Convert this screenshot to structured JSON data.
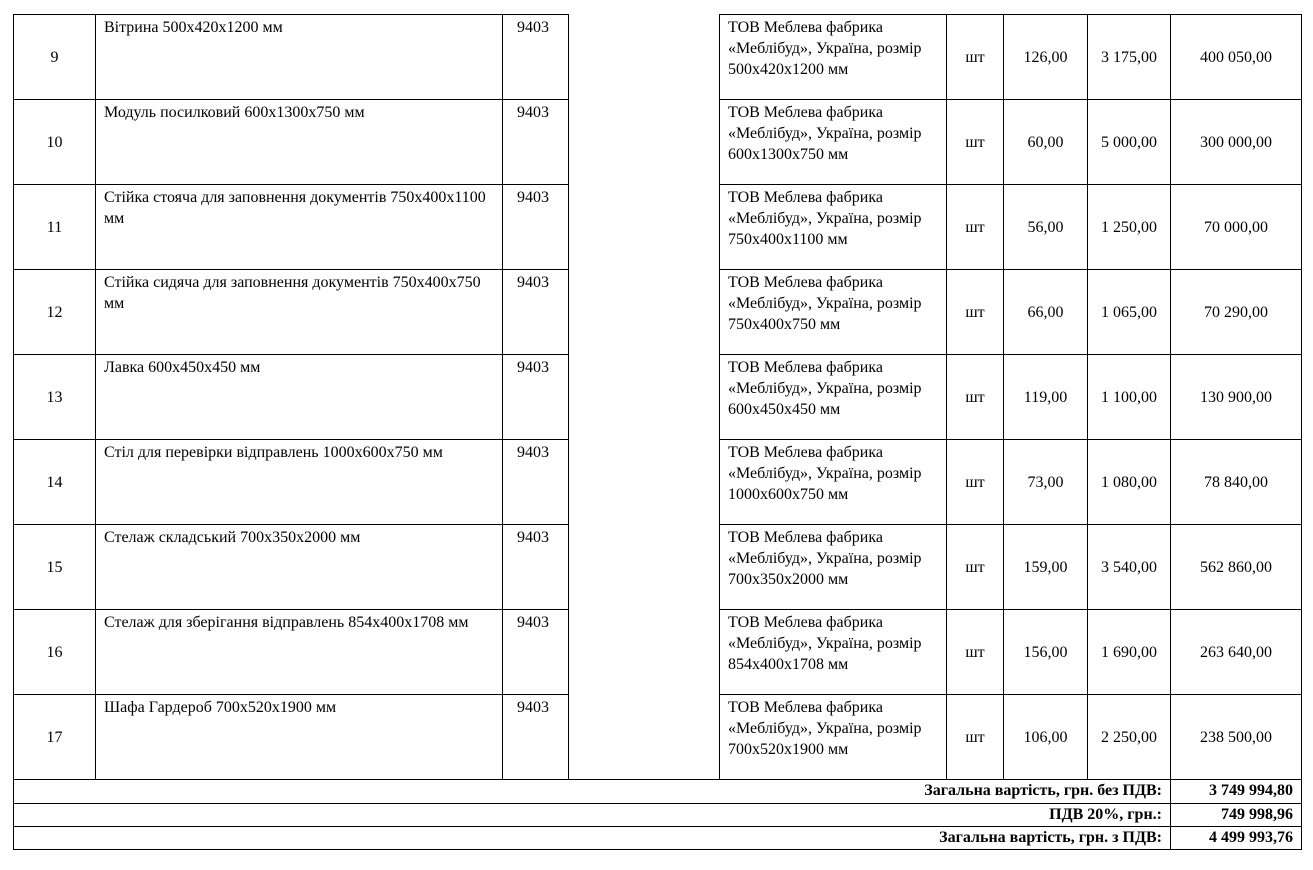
{
  "table": {
    "rows": [
      [
        "9",
        "Вітрина 500x420x1200 мм",
        "9403",
        "ТОВ Меблева фабрика «Меблібуд», Україна, розмір 500x420x1200 мм",
        "шт",
        "126,00",
        "3 175,00",
        "400 050,00"
      ],
      [
        "10",
        "Модуль посилковий 600x1300x750 мм",
        "9403",
        "ТОВ Меблева фабрика «Меблібуд», Україна, розмір 600x1300x750 мм",
        "шт",
        "60,00",
        "5 000,00",
        "300 000,00"
      ],
      [
        "11",
        "Стійка стояча для заповнення документів 750x400x1100 мм",
        "9403",
        "ТОВ Меблева фабрика «Меблібуд», Україна, розмір 750x400x1100 мм",
        "шт",
        "56,00",
        "1 250,00",
        "70 000,00"
      ],
      [
        "12",
        "Стійка сидяча для заповнення документів 750x400x750 мм",
        "9403",
        "ТОВ Меблева фабрика «Меблібуд», Україна, розмір 750x400x750 мм",
        "шт",
        "66,00",
        "1 065,00",
        "70 290,00"
      ],
      [
        "13",
        "Лавка 600x450x450 мм",
        "9403",
        "ТОВ Меблева фабрика «Меблібуд», Україна, розмір 600x450x450 мм",
        "шт",
        "119,00",
        "1 100,00",
        "130 900,00"
      ],
      [
        "14",
        "Стіл для перевірки відправлень 1000x600x750 мм",
        "9403",
        "ТОВ Меблева фабрика «Меблібуд», Україна, розмір 1000x600x750 мм",
        "шт",
        "73,00",
        "1 080,00",
        "78 840,00"
      ],
      [
        "15",
        "Стелаж складський 700x350x2000 мм",
        "9403",
        "ТОВ Меблева фабрика «Меблібуд», Україна, розмір 700x350x2000 мм",
        "шт",
        "159,00",
        "3 540,00",
        "562 860,00"
      ],
      [
        "16",
        "Стелаж для зберігання відправлень 854x400x1708 мм",
        "9403",
        "ТОВ Меблева фабрика «Меблібуд», Україна, розмір 854x400x1708 мм",
        "шт",
        "156,00",
        "1 690,00",
        "263 640,00"
      ],
      [
        "17",
        "Шафа Гардероб 700x520x1900 мм",
        "9403",
        "ТОВ Меблева фабрика «Меблібуд», Україна, розмір 700x520x1900 мм",
        "шт",
        "106,00",
        "2 250,00",
        "238 500,00"
      ]
    ],
    "totals": [
      [
        "Загальна вартість, грн. без ПДВ:",
        "3 749 994,80"
      ],
      [
        "ПДВ 20%, грн.:",
        "749 998,96"
      ],
      [
        "Загальна вартість, грн. з ПДВ:",
        "4 499 993,76"
      ]
    ]
  }
}
